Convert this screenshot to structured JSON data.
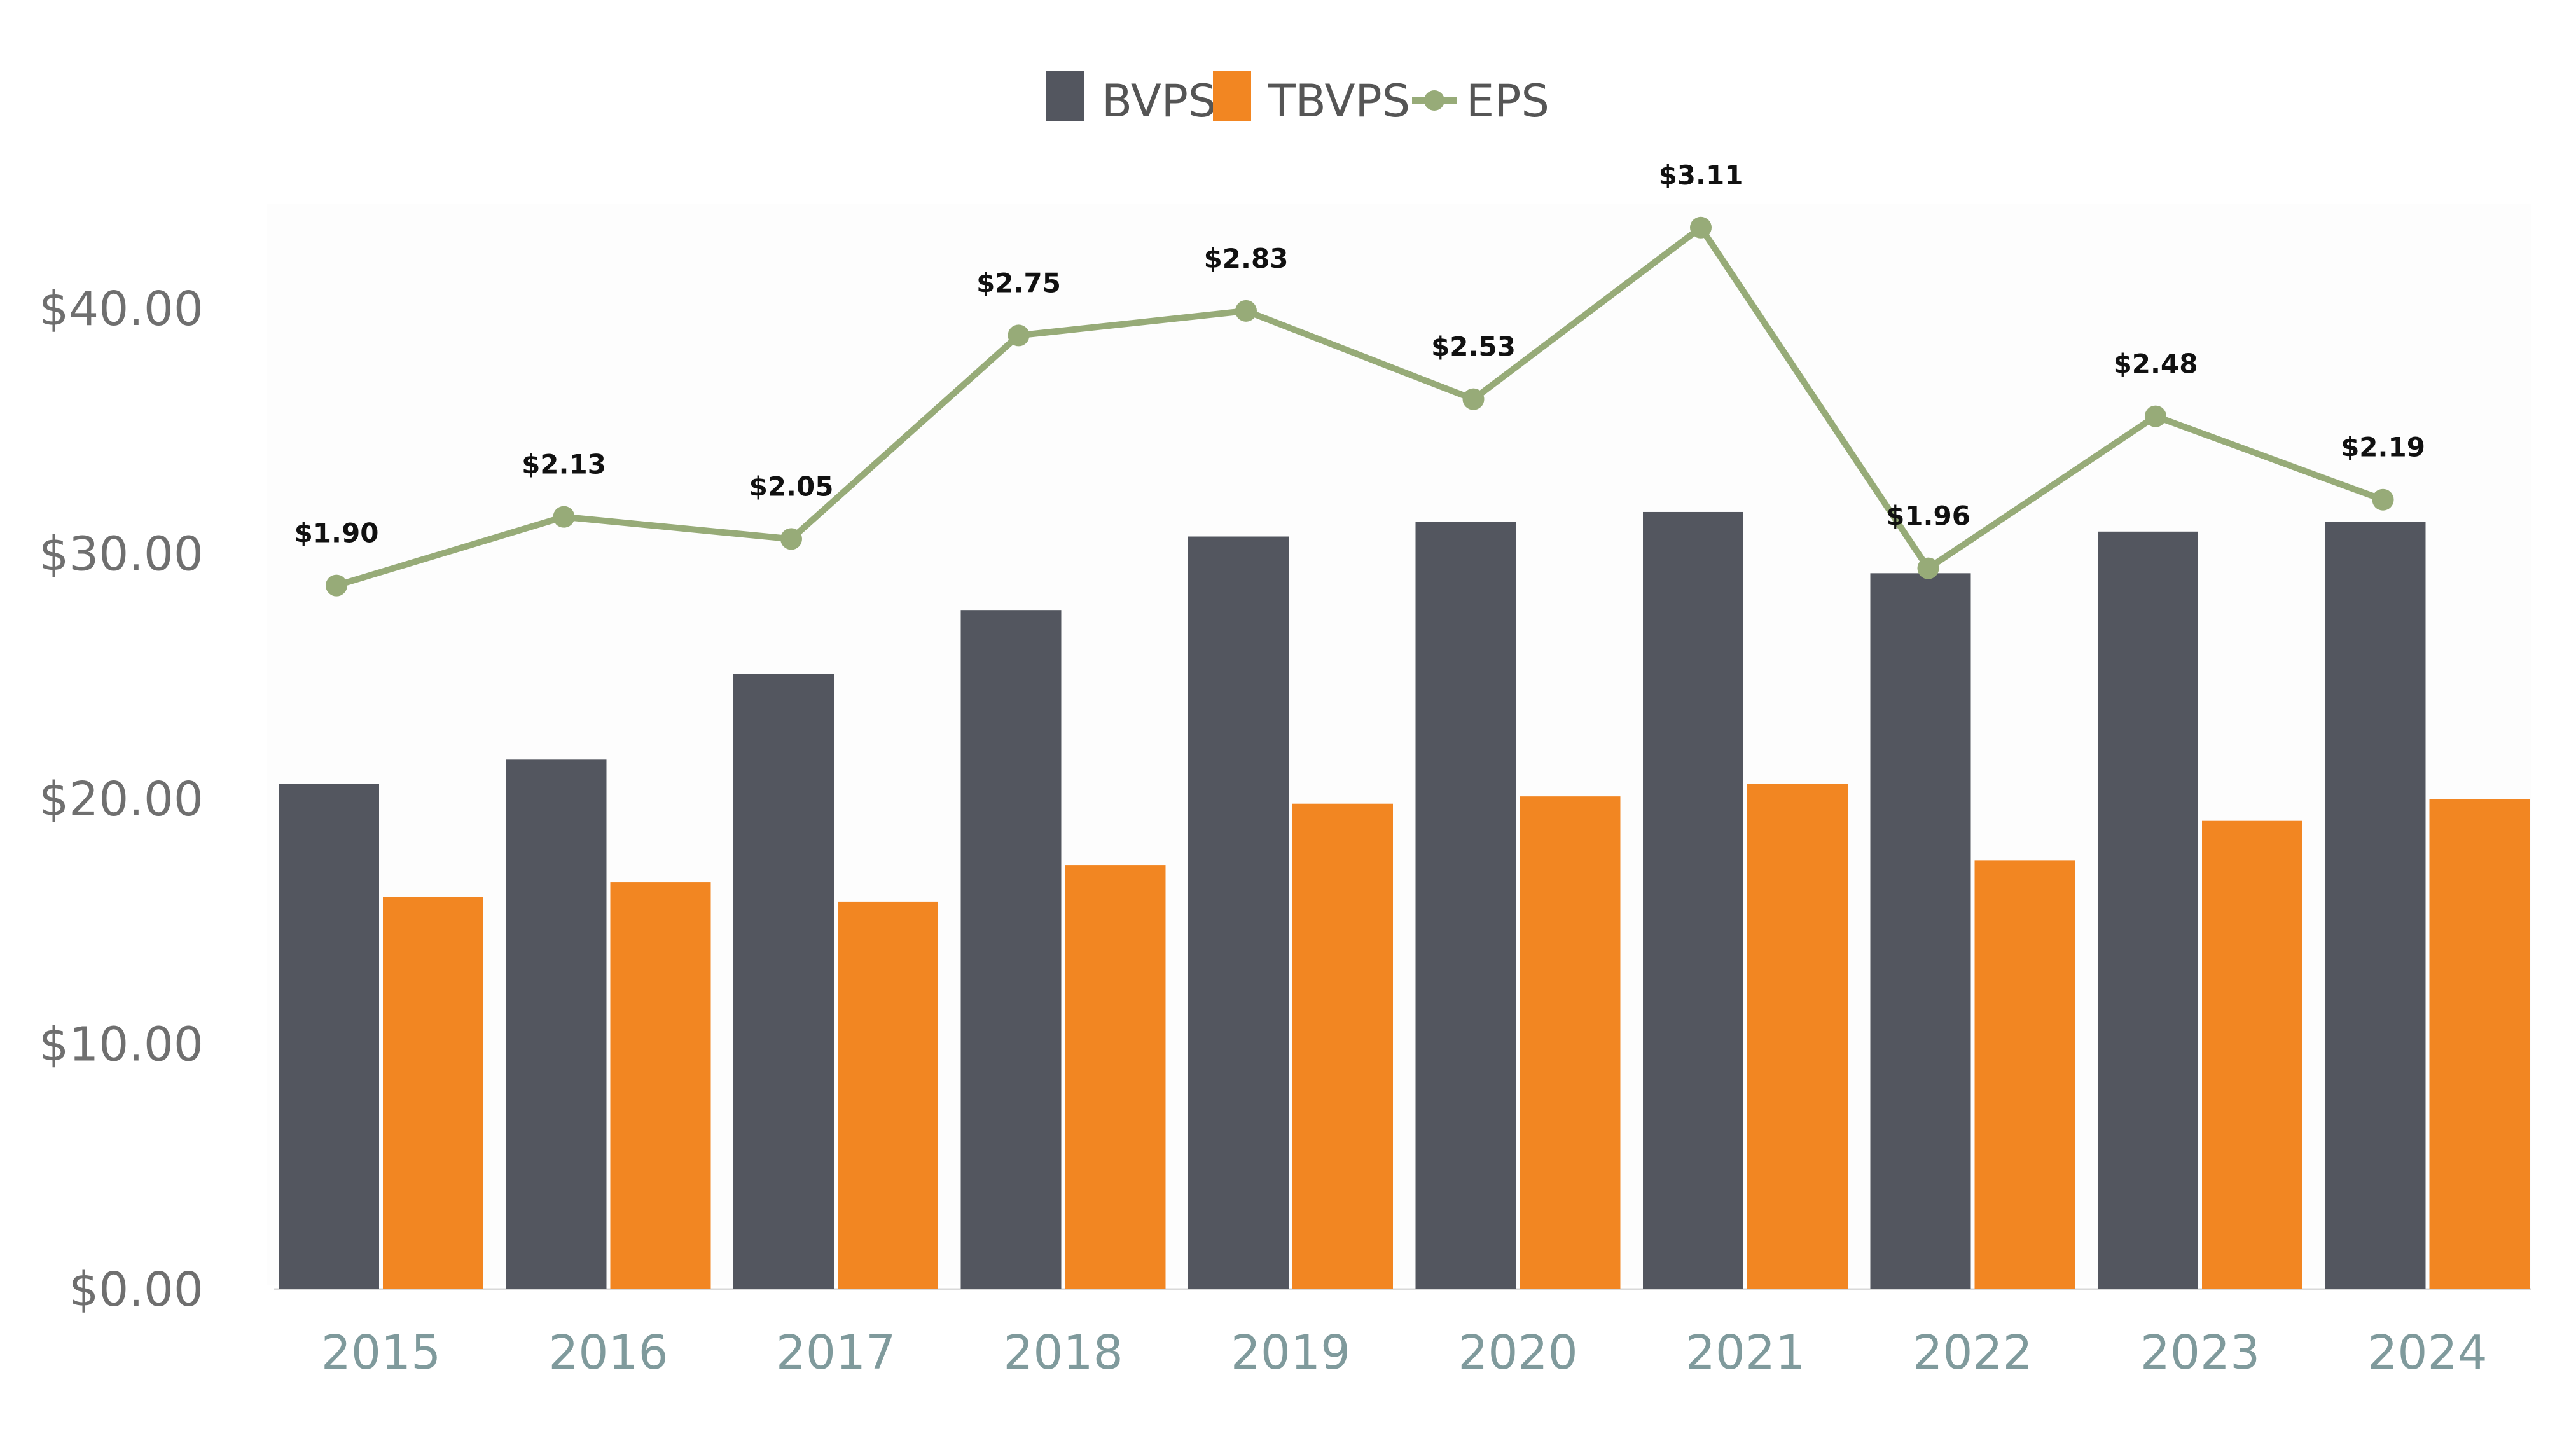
{
  "chart_data": {
    "type": "bar",
    "title": "",
    "xlabel": "",
    "ylabel": "",
    "ylim": [
      0,
      45
    ],
    "y_ticks": [
      "$0.00",
      "$10.00",
      "$20.00",
      "$30.00",
      "$40.00"
    ],
    "y_tick_values": [
      0,
      10,
      20,
      30,
      40
    ],
    "categories": [
      "2015",
      "2016",
      "2017",
      "2018",
      "2019",
      "2020",
      "2021",
      "2022",
      "2023",
      "2024"
    ],
    "series": [
      {
        "name": "BVPS",
        "type": "bar",
        "color": "#53565f",
        "values": [
          20.6,
          21.6,
          25.1,
          27.7,
          30.7,
          31.3,
          31.7,
          29.2,
          30.9,
          31.3
        ]
      },
      {
        "name": "TBVPS",
        "type": "bar",
        "color": "#f28622",
        "values": [
          16.0,
          16.6,
          15.8,
          17.3,
          19.8,
          20.1,
          20.6,
          17.5,
          19.1,
          20.0
        ]
      },
      {
        "name": "EPS",
        "type": "line",
        "color": "#97ab78",
        "values": [
          1.9,
          2.13,
          2.05,
          2.75,
          2.83,
          2.53,
          3.11,
          1.96,
          2.48,
          2.19
        ],
        "labels": [
          "$1.90",
          "$2.13",
          "$2.05",
          "$2.75",
          "$2.83",
          "$2.53",
          "$3.11",
          "$1.96",
          "$2.48",
          "$2.19"
        ],
        "plot_positions": [
          28.7,
          31.5,
          30.6,
          38.9,
          39.9,
          36.3,
          43.3,
          29.4,
          35.6,
          32.2
        ]
      }
    ],
    "legend": {
      "position": "top-center",
      "entries": [
        "BVPS",
        "TBVPS",
        "EPS"
      ]
    },
    "grid": false
  }
}
